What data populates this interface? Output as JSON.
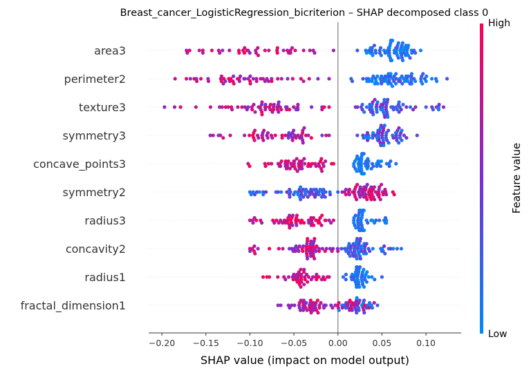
{
  "chart_data": {
    "type": "scatter",
    "title": "Breast_cancer_LogisticRegression_bicriterion – SHAP decomposed class 0",
    "xlabel": "SHAP value (impact on model output)",
    "xlim": [
      -0.215,
      0.14
    ],
    "xticks": [
      -0.2,
      -0.15,
      -0.1,
      -0.05,
      0.0,
      0.05,
      0.1
    ],
    "xtick_labels": [
      "−0.20",
      "−0.15",
      "−0.10",
      "−0.05",
      "0.00",
      "0.05",
      "0.10"
    ],
    "colorbar": {
      "label": "Feature value",
      "high": "High",
      "low": "Low",
      "color_high": "#ff0052",
      "color_mid": "#7b2fd0",
      "color_low": "#008bfa"
    },
    "zero_line_color": "#999999",
    "features": [
      {
        "name": "area3",
        "neg": {
          "min": -0.172,
          "max": -0.005,
          "center": -0.09,
          "count": 40,
          "lo": 0.55,
          "hi": 1.0
        },
        "pos": {
          "min": 0.022,
          "max": 0.094,
          "center": 0.06,
          "count": 70,
          "lo": 0.0,
          "hi": 0.3
        }
      },
      {
        "name": "perimeter2",
        "neg": {
          "min": -0.185,
          "max": -0.01,
          "center": -0.1,
          "count": 50,
          "lo": 0.45,
          "hi": 1.0
        },
        "pos": {
          "min": 0.015,
          "max": 0.124,
          "center": 0.06,
          "count": 70,
          "lo": 0.0,
          "hi": 0.35
        }
      },
      {
        "name": "texture3",
        "neg": {
          "min": -0.197,
          "max": -0.01,
          "center": -0.08,
          "count": 60,
          "lo": 0.45,
          "hi": 1.0
        },
        "pos": {
          "min": 0.02,
          "max": 0.12,
          "center": 0.05,
          "count": 65,
          "lo": 0.1,
          "hi": 0.6
        }
      },
      {
        "name": "symmetry3",
        "neg": {
          "min": -0.145,
          "max": -0.01,
          "center": -0.07,
          "count": 55,
          "lo": 0.4,
          "hi": 1.0
        },
        "pos": {
          "min": 0.022,
          "max": 0.09,
          "center": 0.05,
          "count": 60,
          "lo": 0.0,
          "hi": 0.6
        }
      },
      {
        "name": "concave_points3",
        "neg": {
          "min": -0.102,
          "max": -0.005,
          "center": -0.045,
          "count": 55,
          "lo": 0.6,
          "hi": 1.0
        },
        "pos": {
          "min": 0.018,
          "max": 0.066,
          "center": 0.027,
          "count": 55,
          "lo": 0.0,
          "hi": 0.2
        }
      },
      {
        "name": "symmetry2",
        "neg": {
          "min": -0.1,
          "max": 0.0,
          "center": -0.035,
          "count": 55,
          "lo": 0.0,
          "hi": 0.5
        },
        "pos": {
          "min": 0.005,
          "max": 0.064,
          "center": 0.03,
          "count": 60,
          "lo": 0.5,
          "hi": 1.0
        }
      },
      {
        "name": "radius3",
        "neg": {
          "min": -0.1,
          "max": -0.005,
          "center": -0.045,
          "count": 55,
          "lo": 0.6,
          "hi": 1.0
        },
        "pos": {
          "min": 0.018,
          "max": 0.055,
          "center": 0.027,
          "count": 55,
          "lo": 0.0,
          "hi": 0.25
        }
      },
      {
        "name": "concavity2",
        "neg": {
          "min": -0.1,
          "max": 0.0,
          "center": -0.03,
          "count": 60,
          "lo": 0.4,
          "hi": 1.0
        },
        "pos": {
          "min": 0.004,
          "max": 0.072,
          "center": 0.022,
          "count": 60,
          "lo": 0.0,
          "hi": 0.5
        }
      },
      {
        "name": "radius1",
        "neg": {
          "min": -0.085,
          "max": -0.01,
          "center": -0.04,
          "count": 45,
          "lo": 0.6,
          "hi": 1.0
        },
        "pos": {
          "min": 0.006,
          "max": 0.05,
          "center": 0.022,
          "count": 45,
          "lo": 0.0,
          "hi": 0.25
        }
      },
      {
        "name": "fractal_dimension1",
        "neg": {
          "min": -0.068,
          "max": -0.003,
          "center": -0.03,
          "count": 45,
          "lo": 0.45,
          "hi": 1.0
        },
        "pos": {
          "min": 0.0,
          "max": 0.045,
          "center": 0.02,
          "count": 45,
          "lo": 0.0,
          "hi": 1.0
        }
      }
    ]
  }
}
